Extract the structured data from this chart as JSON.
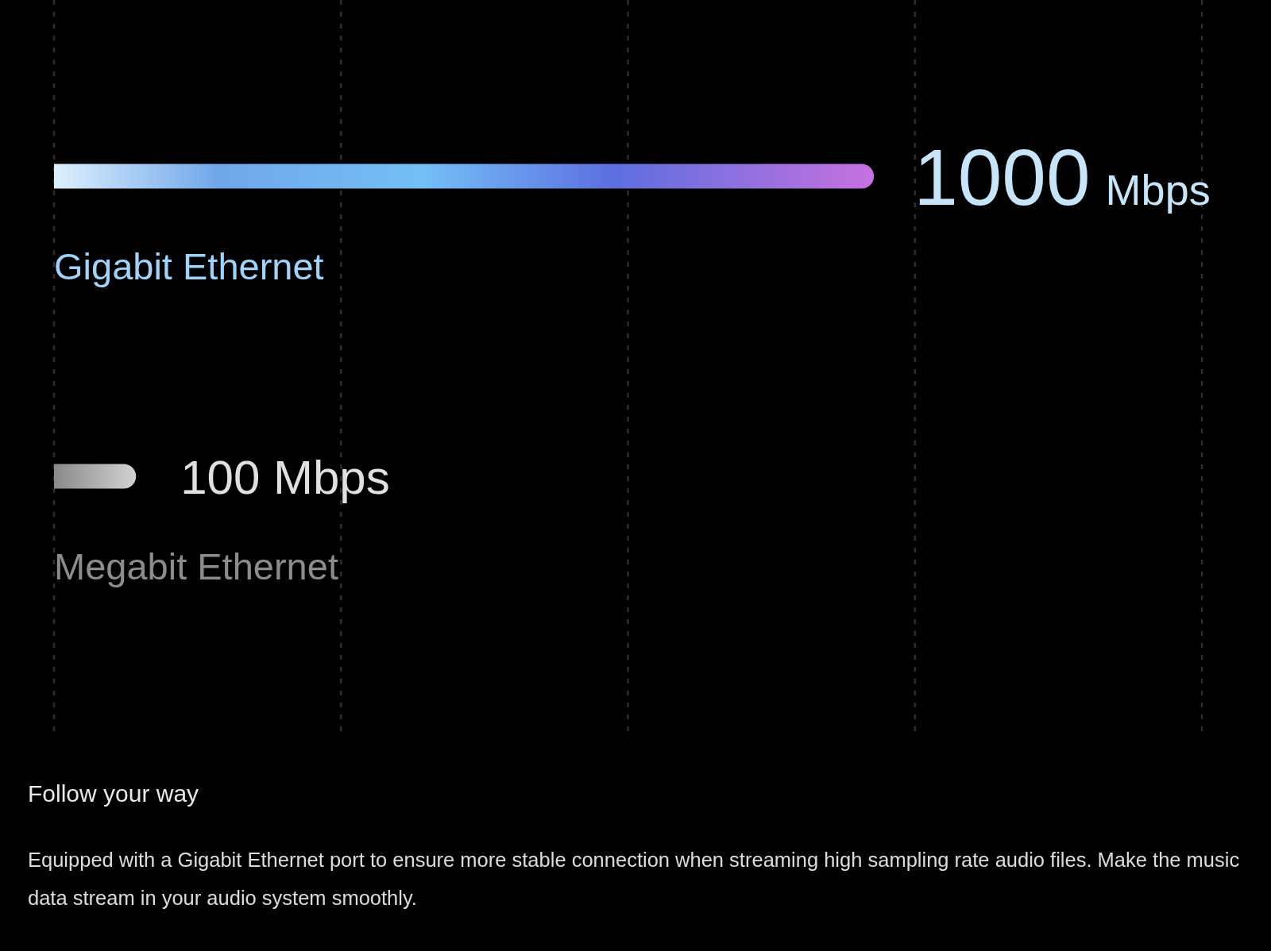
{
  "chart_data": {
    "type": "bar",
    "orientation": "horizontal",
    "title": "Follow your way",
    "categories": [
      "Gigabit Ethernet",
      "Megabit Ethernet"
    ],
    "values": [
      1000,
      100
    ],
    "colors": [
      "#74bff6",
      "#b4b4b4"
    ],
    "value_labels": [
      "1000 Mbps",
      "100 Mbps"
    ],
    "xlim": [
      0,
      1400
    ],
    "xticks": [
      {
        "value": 0,
        "label": null
      },
      {
        "value": 350,
        "label": null
      },
      {
        "value": 700,
        "label": null
      },
      {
        "value": 1050,
        "label": null
      },
      {
        "value": 1400,
        "label": null
      }
    ],
    "grid": "x",
    "tick_labels": "y",
    "annotations": [
      "Equipped with a Gigabit Ethernet port to ensure more stable connection when streaming high sampling rate audio files. Make the music data stream in your audio system smoothly."
    ]
  }
}
